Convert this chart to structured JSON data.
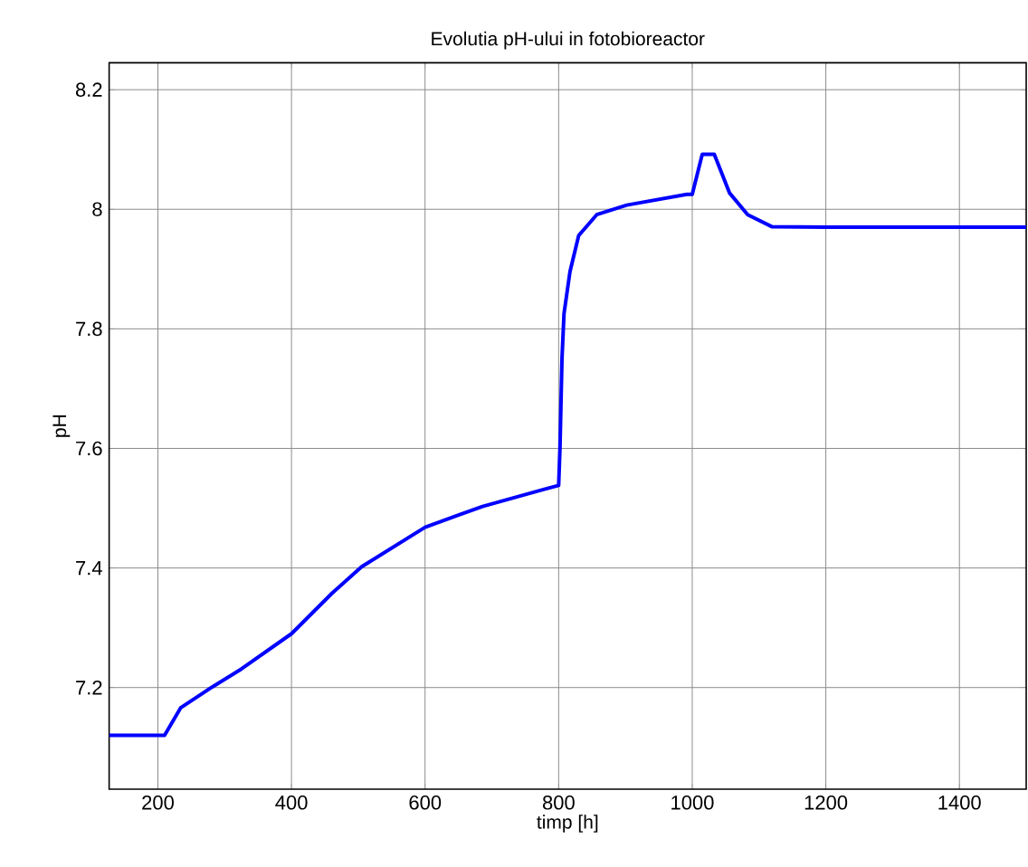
{
  "chart_data": {
    "type": "line",
    "title": "Evolutia pH-ului in fotobioreactor",
    "xlabel": "timp [h]",
    "ylabel": "pH",
    "xlim": [
      127,
      1500
    ],
    "ylim": [
      7.03,
      8.245
    ],
    "xticks": [
      200,
      400,
      600,
      800,
      1000,
      1200,
      1400
    ],
    "yticks": [
      7.2,
      7.4,
      7.6,
      7.8,
      8,
      8.2
    ],
    "grid": true,
    "line_style": "solid",
    "marker": "none",
    "series": [
      {
        "color": "#0000ff",
        "x": [
          127,
          210,
          234,
          280,
          325,
          400,
          460,
          505,
          600,
          686,
          776,
          800,
          802,
          805,
          808,
          817,
          830,
          857,
          902,
          992,
          1000,
          1015,
          1033,
          1056,
          1083,
          1119,
          1200,
          1300,
          1400,
          1500
        ],
        "values": [
          7.12,
          7.12,
          7.166,
          7.2,
          7.231,
          7.29,
          7.357,
          7.402,
          7.468,
          7.503,
          7.531,
          7.538,
          7.6,
          7.75,
          7.825,
          7.896,
          7.956,
          7.991,
          8.007,
          8.025,
          8.025,
          8.092,
          8.092,
          8.027,
          7.991,
          7.971,
          7.97,
          7.97,
          7.97,
          7.97
        ]
      }
    ]
  }
}
